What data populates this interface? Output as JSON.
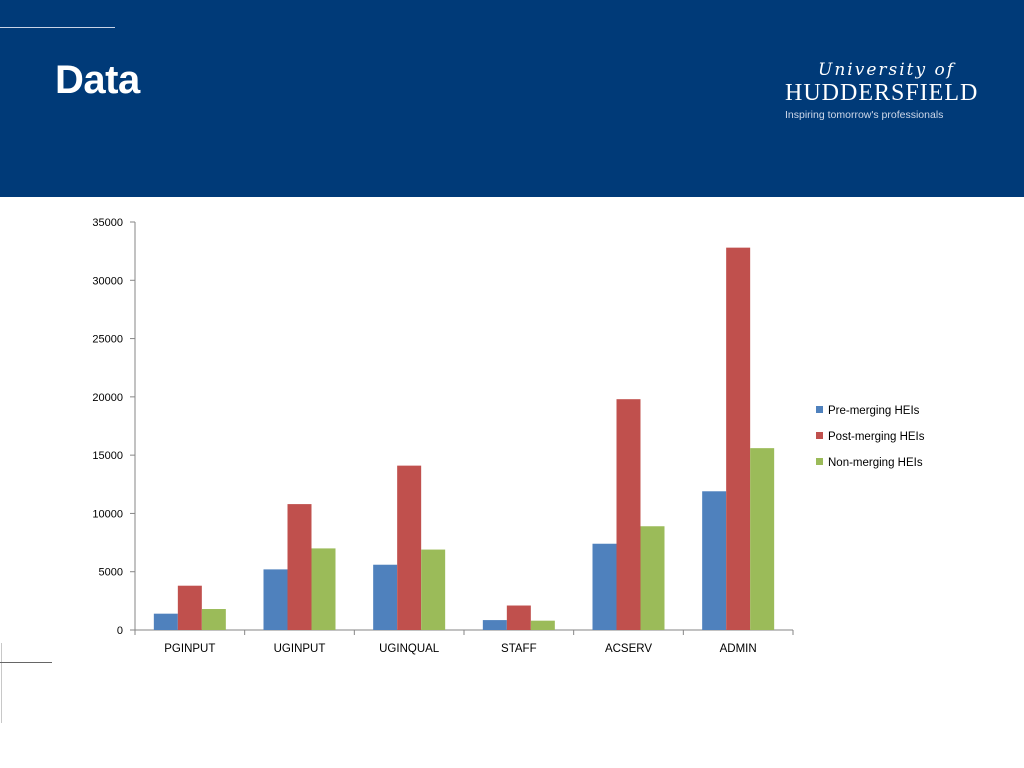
{
  "slide": {
    "title": "Data"
  },
  "logo": {
    "line1": "University of",
    "line2": "HUDDERSFIELD",
    "line3": "Inspiring tomorrow's professionals"
  },
  "colors": {
    "header_bg": "#003a78",
    "series": [
      "#4f81bd",
      "#c0504d",
      "#9bbb59"
    ]
  },
  "chart_data": {
    "type": "bar",
    "categories": [
      "PGINPUT",
      "UGINPUT",
      "UGINQUAL",
      "STAFF",
      "ACSERV",
      "ADMIN"
    ],
    "series": [
      {
        "name": "Pre-merging HEIs",
        "values": [
          1400,
          5200,
          5600,
          850,
          7400,
          11900
        ]
      },
      {
        "name": "Post-merging HEIs",
        "values": [
          3800,
          10800,
          14100,
          2100,
          19800,
          32800
        ]
      },
      {
        "name": "Non-merging HEIs",
        "values": [
          1800,
          7000,
          6900,
          800,
          8900,
          15600
        ]
      }
    ],
    "yticks": [
      0,
      5000,
      10000,
      15000,
      20000,
      25000,
      30000,
      35000
    ],
    "ylim": [
      0,
      35000
    ],
    "legend_position": "right",
    "grid": false
  }
}
